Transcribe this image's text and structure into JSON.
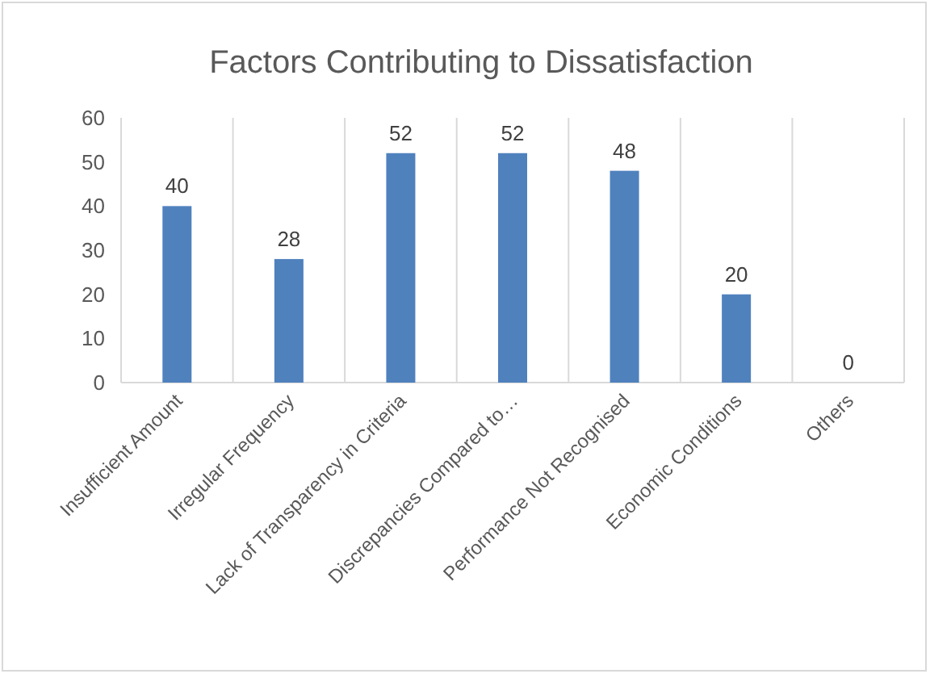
{
  "chart_data": {
    "type": "bar",
    "title": "Factors Contributing to Dissatisfaction",
    "categories": [
      "Insufficient Amount",
      "Irregular Frequency",
      "Lack of Transparency in Criteria",
      "Discrepancies Compared to…",
      "Performance Not Recognised",
      "Economic Conditions",
      "Others"
    ],
    "values": [
      40,
      28,
      52,
      52,
      48,
      20,
      0
    ],
    "color": "#4f81bd",
    "ylim": [
      0,
      60
    ],
    "yticks": [
      0,
      10,
      20,
      30,
      40,
      50,
      60
    ],
    "grid": "x",
    "data_labels": true
  }
}
